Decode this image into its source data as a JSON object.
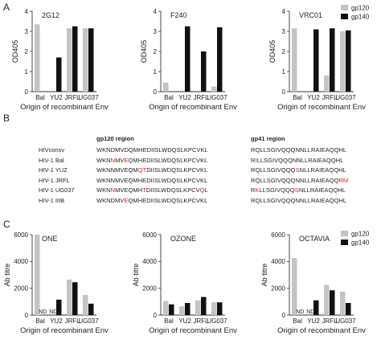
{
  "panel_letters": [
    "A",
    "B",
    "C"
  ],
  "colors": {
    "gp120": "#c4c4c4",
    "gp140": "#111111",
    "mutation": "#e02020"
  },
  "panelA": {
    "ylabel": "OD405",
    "xlabel": "Origin of recombinant Env",
    "legend": [
      "gp120",
      "gp140"
    ],
    "yticks": [
      "0",
      "1",
      "2",
      "3",
      "4"
    ],
    "ylim": [
      0,
      4
    ]
  },
  "panelC": {
    "ylabel": "Ab titre",
    "xlabel": "Origin of recombinant Env",
    "legend": [
      "gp120",
      "gp140"
    ],
    "yticks": [
      "0",
      "2000",
      "4000",
      "6000"
    ],
    "ylim": [
      0,
      6000
    ],
    "nd_label": "ND"
  },
  "chart_data": [
    {
      "type": "bar",
      "panel": "A",
      "title": "2G12",
      "categories": [
        "Bal",
        "YU2",
        "JRFL",
        "UG037"
      ],
      "series": [
        {
          "name": "gp120",
          "values": [
            3.35,
            null,
            3.15,
            3.15
          ]
        },
        {
          "name": "gp140",
          "values": [
            null,
            1.7,
            3.25,
            3.15
          ]
        }
      ],
      "ylim": [
        0,
        4
      ]
    },
    {
      "type": "bar",
      "panel": "A",
      "title": "F240",
      "categories": [
        "Bal",
        "YU2",
        "JRFL",
        "UG037"
      ],
      "series": [
        {
          "name": "gp120",
          "values": [
            0.45,
            null,
            null,
            0.25
          ]
        },
        {
          "name": "gp140",
          "values": [
            null,
            3.25,
            2.0,
            3.2
          ]
        }
      ],
      "ylim": [
        0,
        4
      ]
    },
    {
      "type": "bar",
      "panel": "A",
      "title": "VRC01",
      "categories": [
        "Bal",
        "YU2",
        "JRFL",
        "UG037"
      ],
      "series": [
        {
          "name": "gp120",
          "values": [
            3.15,
            null,
            0.8,
            3.0
          ]
        },
        {
          "name": "gp140",
          "values": [
            null,
            3.1,
            3.15,
            3.05
          ]
        }
      ],
      "ylim": [
        0,
        4
      ]
    },
    {
      "type": "bar",
      "panel": "C",
      "title": "ONE",
      "categories": [
        "Bal",
        "YU2",
        "JRFL",
        "UG037"
      ],
      "series": [
        {
          "name": "gp120",
          "values": [
            6000,
            null,
            2650,
            1500
          ]
        },
        {
          "name": "gp140",
          "values": [
            null,
            1150,
            2450,
            850
          ]
        }
      ],
      "nd": [
        "YU2:gp120",
        "Bal:gp140"
      ],
      "ylim": [
        0,
        6000
      ]
    },
    {
      "type": "bar",
      "panel": "C",
      "title": "OZONE",
      "categories": [
        "Bal",
        "YU2",
        "JRFL",
        "UG037"
      ],
      "series": [
        {
          "name": "gp120",
          "values": [
            1050,
            650,
            1100,
            950
          ]
        },
        {
          "name": "gp140",
          "values": [
            800,
            900,
            1350,
            950
          ]
        }
      ],
      "ylim": [
        0,
        6000
      ]
    },
    {
      "type": "bar",
      "panel": "C",
      "title": "OCTAVIA",
      "categories": [
        "Bal",
        "YU2",
        "JRFL",
        "UG037"
      ],
      "series": [
        {
          "name": "gp120",
          "values": [
            4250,
            null,
            2250,
            1750
          ]
        },
        {
          "name": "gp140",
          "values": [
            null,
            1100,
            1850,
            900
          ]
        }
      ],
      "nd": [
        "YU2:gp120",
        "Bal:gp140"
      ],
      "ylim": [
        0,
        6000
      ]
    }
  ],
  "panelB": {
    "gp120_header": "gp120 region",
    "gp41_header": "gp41 region",
    "rows": [
      {
        "name": "HIVconsv",
        "gp120": [
          [
            "WKNDMVDQMHEDIISLWDQSLKPCVKL",
            false
          ]
        ],
        "gp41": [
          [
            "RQLLSGIVQQQNNLLRAIEAQQHL",
            false
          ]
        ]
      },
      {
        "name": "HIV-1 Bal",
        "gp120": [
          [
            "WKN",
            false
          ],
          [
            "N",
            true
          ],
          [
            "MV",
            false
          ],
          [
            "E",
            true
          ],
          [
            "QMHEDIISLWDQSLKPCVKL",
            false
          ]
        ],
        "gp41": [
          [
            "R",
            false
          ],
          [
            "I",
            true
          ],
          [
            "LLSGIVQQQNNLLRAIEAQQHL",
            false
          ]
        ]
      },
      {
        "name": "HIV-1 YUZ",
        "gp120": [
          [
            "WKNNMVEQM",
            false
          ],
          [
            "QT",
            true
          ],
          [
            "DIISLWDQSLKPCVKL",
            false
          ]
        ],
        "gp41": [
          [
            "RQLLSGIVQQQ",
            false
          ],
          [
            "S",
            true
          ],
          [
            "NLLRAIEAQQHL",
            false
          ]
        ]
      },
      {
        "name": "HIV-1 JRFL",
        "gp120": [
          [
            "WKNNMVEQMHEDIISLWDQSLKPCVKL",
            false
          ]
        ],
        "gp41": [
          [
            "RQLLSGIVQQQNNLLRAIEAQQ",
            false
          ],
          [
            "RM",
            true
          ]
        ]
      },
      {
        "name": "HIV-1 UG037",
        "gp120": [
          [
            "WKN",
            false
          ],
          [
            "N",
            true
          ],
          [
            "MVEQMH",
            false
          ],
          [
            "T",
            true
          ],
          [
            "DIISLWDQSLKPCV",
            false
          ],
          [
            "Q",
            true
          ],
          [
            "L",
            false
          ]
        ],
        "gp41": [
          [
            "R",
            false
          ],
          [
            "K",
            true
          ],
          [
            "LLSGIVQQQ",
            false
          ],
          [
            "S",
            true
          ],
          [
            "NLLRAIEAQQHL",
            false
          ]
        ]
      },
      {
        "name": "HIV-1 IIIB",
        "gp120": [
          [
            "WKNDMV",
            false
          ],
          [
            "E",
            true
          ],
          [
            "QMHEDIISLWDQSLKPCVKL",
            false
          ]
        ],
        "gp41": [
          [
            "RQLLSGIVQQQNNLLRAIEAQQHL",
            false
          ]
        ]
      }
    ]
  }
}
